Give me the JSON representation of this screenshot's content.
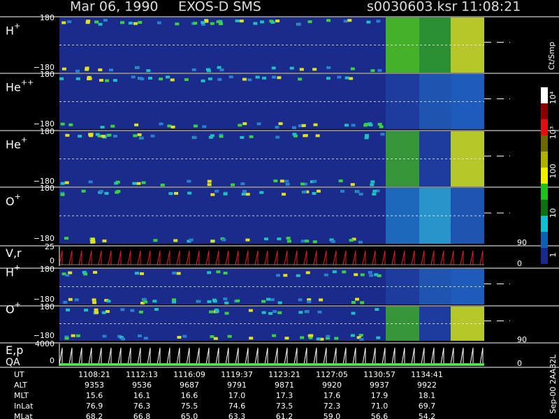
{
  "header": {
    "date": "Mar 06, 1990",
    "instrument": "EXOS-D SMS",
    "file": "s0030603.ksr",
    "time": "11:08:21"
  },
  "panels": [
    {
      "label": "H",
      "charge": "+",
      "ticks": [
        "180",
        "−180"
      ]
    },
    {
      "label": "He",
      "charge": "++",
      "ticks": [
        "180",
        "−180"
      ]
    },
    {
      "label": "He",
      "charge": "+",
      "ticks": [
        "180",
        "−180"
      ]
    },
    {
      "label": "O",
      "charge": "+",
      "ticks": [
        "180",
        "−180"
      ]
    },
    {
      "label": "V,r",
      "ticks": [
        "25",
        "0"
      ],
      "right": [
        "90",
        "0"
      ]
    },
    {
      "label": "H",
      "charge": "+",
      "ticks": [
        "180",
        "−180"
      ]
    },
    {
      "label": "O",
      "charge": "+",
      "ticks": [
        "180",
        "−180"
      ]
    },
    {
      "label": "E,p",
      "label2": "QA",
      "ticks": [
        "4000",
        "0"
      ],
      "right": [
        "90",
        "0"
      ]
    }
  ],
  "colorbar": {
    "unit": "Ct/Smp",
    "ticks": [
      "10⁴",
      "10³",
      "100",
      "10",
      "1"
    ]
  },
  "table": {
    "rows": [
      [
        "UT",
        "1108:21",
        "1112:13",
        "1116:09",
        "1119:37",
        "1123:21",
        "1127:05",
        "1130:57",
        "1134:41"
      ],
      [
        "ALT",
        "9353",
        "9536",
        "9687",
        "9791",
        "9871",
        "9920",
        "9937",
        "9922"
      ],
      [
        "MLT",
        "15.6",
        "16.1",
        "16.6",
        "17.0",
        "17.3",
        "17.6",
        "17.9",
        "18.1"
      ],
      [
        "InLat",
        "76.9",
        "76.3",
        "75.5",
        "74.6",
        "73.5",
        "72.3",
        "71.0",
        "69.7"
      ],
      [
        "MLat",
        "68.2",
        "66.8",
        "65.0",
        "63.3",
        "61.2",
        "59.0",
        "56.6",
        "54.2"
      ]
    ]
  },
  "side_note": "Sep-00 2AA32L"
}
